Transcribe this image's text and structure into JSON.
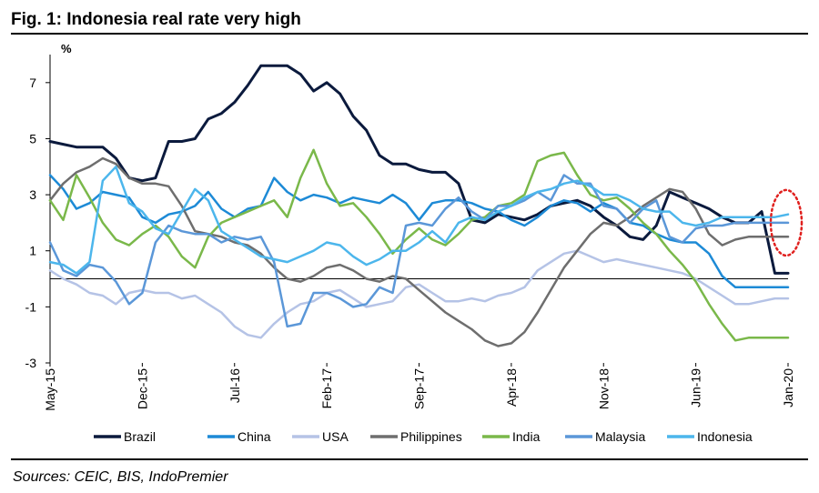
{
  "header": {
    "title": "Fig. 1:  Indonesia real rate very high"
  },
  "footer": {
    "source": "Sources:  CEIC, BIS, IndoPremier"
  },
  "chart_data": {
    "type": "line",
    "ylabel": "%",
    "ylim": [
      -3,
      8
    ],
    "yticks": [
      7,
      5,
      3,
      1,
      -1,
      -3
    ],
    "xlim": [
      0,
      56
    ],
    "xticks": [
      {
        "x": 0,
        "label": "May-15"
      },
      {
        "x": 7,
        "label": "Dec-15"
      },
      {
        "x": 14,
        "label": "Jul-16"
      },
      {
        "x": 21,
        "label": "Feb-17"
      },
      {
        "x": 28,
        "label": "Sep-17"
      },
      {
        "x": 35,
        "label": "Apr-18"
      },
      {
        "x": 42,
        "label": "Nov-18"
      },
      {
        "x": 49,
        "label": "Jun-19"
      },
      {
        "x": 56,
        "label": "Jan-20"
      }
    ],
    "zero_line": true,
    "grid": false,
    "legend_position": "bottom",
    "annotation": "red dotted ellipse around latest values",
    "series": [
      {
        "name": "Brazil",
        "color": "#0b1a3d",
        "width": 3,
        "values": [
          4.9,
          4.8,
          4.7,
          4.7,
          4.7,
          4.3,
          3.6,
          3.5,
          3.6,
          4.9,
          4.9,
          5.0,
          5.7,
          5.9,
          6.3,
          6.9,
          7.6,
          7.6,
          7.6,
          7.3,
          6.7,
          7.0,
          6.6,
          5.8,
          5.3,
          4.4,
          4.1,
          4.1,
          3.9,
          3.8,
          3.8,
          3.4,
          2.1,
          2.0,
          2.3,
          2.2,
          2.1,
          2.3,
          2.6,
          2.7,
          2.8,
          2.6,
          2.2,
          1.9,
          1.5,
          1.4,
          1.9,
          3.1,
          2.9,
          2.7,
          2.5,
          2.2,
          2.0,
          2.0,
          2.4,
          0.2,
          0.2
        ]
      },
      {
        "name": "China",
        "color": "#1d8ad6",
        "width": 2.5,
        "values": [
          3.7,
          3.2,
          2.5,
          2.7,
          3.1,
          3.0,
          2.9,
          2.2,
          2.0,
          2.3,
          2.4,
          2.6,
          3.1,
          2.5,
          2.2,
          2.5,
          2.6,
          3.6,
          3.1,
          2.8,
          3.0,
          2.9,
          2.7,
          2.9,
          2.8,
          2.7,
          3.0,
          2.7,
          2.1,
          2.7,
          2.8,
          2.8,
          2.7,
          2.5,
          2.4,
          2.1,
          1.9,
          2.2,
          2.6,
          2.8,
          2.7,
          2.4,
          2.7,
          2.5,
          2.0,
          1.9,
          1.6,
          1.4,
          1.3,
          1.3,
          0.9,
          0.1,
          -0.3,
          -0.3,
          -0.3,
          -0.3,
          -0.3
        ]
      },
      {
        "name": "USA",
        "color": "#b5c3e6",
        "width": 2.5,
        "values": [
          0.3,
          0.0,
          -0.2,
          -0.5,
          -0.6,
          -0.9,
          -0.5,
          -0.4,
          -0.5,
          -0.5,
          -0.7,
          -0.6,
          -0.9,
          -1.2,
          -1.7,
          -2.0,
          -2.1,
          -1.6,
          -1.2,
          -0.9,
          -0.8,
          -0.5,
          -0.4,
          -0.7,
          -1.0,
          -0.9,
          -0.8,
          -0.3,
          -0.2,
          -0.5,
          -0.8,
          -0.8,
          -0.7,
          -0.8,
          -0.6,
          -0.5,
          -0.3,
          0.3,
          0.6,
          0.9,
          1.0,
          0.8,
          0.6,
          0.7,
          0.6,
          0.5,
          0.4,
          0.3,
          0.2,
          0.0,
          -0.3,
          -0.6,
          -0.9,
          -0.9,
          -0.8,
          -0.7,
          -0.7
        ]
      },
      {
        "name": "Philippines",
        "color": "#6e6e6e",
        "width": 2.5,
        "values": [
          2.8,
          3.4,
          3.8,
          4.0,
          4.3,
          4.1,
          3.6,
          3.4,
          3.4,
          3.3,
          2.6,
          1.7,
          1.6,
          1.5,
          1.3,
          1.2,
          0.9,
          0.4,
          0.0,
          -0.1,
          0.1,
          0.4,
          0.5,
          0.3,
          0.0,
          -0.1,
          0.1,
          0.0,
          -0.4,
          -0.8,
          -1.2,
          -1.5,
          -1.8,
          -2.2,
          -2.4,
          -2.3,
          -1.9,
          -1.2,
          -0.4,
          0.4,
          1.0,
          1.6,
          2.0,
          1.9,
          2.2,
          2.6,
          2.9,
          3.2,
          3.1,
          2.5,
          1.6,
          1.2,
          1.4,
          1.5,
          1.5,
          1.5,
          1.5
        ]
      },
      {
        "name": "India",
        "color": "#7ab84a",
        "width": 2.5,
        "values": [
          2.8,
          2.1,
          3.7,
          2.9,
          2.0,
          1.4,
          1.2,
          1.6,
          1.9,
          1.5,
          0.8,
          0.4,
          1.5,
          2.0,
          2.2,
          2.4,
          2.6,
          2.8,
          2.2,
          3.6,
          4.6,
          3.4,
          2.6,
          2.7,
          2.2,
          1.6,
          0.9,
          1.4,
          1.8,
          1.4,
          1.2,
          1.6,
          2.1,
          2.2,
          2.6,
          2.7,
          3.0,
          4.2,
          4.4,
          4.5,
          3.7,
          3.0,
          2.8,
          2.9,
          2.5,
          2.0,
          1.6,
          1.0,
          0.5,
          -0.1,
          -0.9,
          -1.6,
          -2.2,
          -2.1,
          -2.1,
          -2.1,
          -2.1
        ]
      },
      {
        "name": "Malaysia",
        "color": "#5b97d8",
        "width": 2.5,
        "values": [
          1.3,
          0.3,
          0.1,
          0.5,
          0.4,
          -0.1,
          -0.9,
          -0.5,
          1.3,
          1.9,
          1.7,
          1.6,
          1.6,
          1.3,
          1.5,
          1.4,
          1.5,
          0.6,
          -1.7,
          -1.6,
          -0.5,
          -0.5,
          -0.7,
          -1.0,
          -0.9,
          -0.3,
          -0.5,
          1.9,
          2.0,
          1.9,
          2.5,
          2.9,
          2.4,
          2.1,
          2.6,
          2.6,
          2.8,
          3.1,
          2.8,
          3.7,
          3.4,
          3.4,
          2.6,
          2.5,
          2.0,
          2.5,
          2.8,
          1.5,
          1.3,
          1.8,
          1.9,
          1.9,
          2.0,
          2.0,
          2.0,
          2.0,
          2.0
        ]
      },
      {
        "name": "Indonesia",
        "color": "#4cb6ec",
        "width": 2.5,
        "values": [
          0.6,
          0.5,
          0.2,
          0.6,
          3.5,
          4.0,
          2.7,
          2.4,
          1.8,
          1.6,
          2.4,
          3.2,
          2.8,
          1.7,
          1.4,
          1.1,
          0.8,
          0.7,
          0.6,
          0.8,
          1.0,
          1.3,
          1.2,
          0.8,
          0.5,
          0.7,
          1.0,
          1.0,
          1.3,
          1.7,
          1.3,
          2.0,
          2.2,
          2.1,
          2.4,
          2.6,
          2.9,
          3.1,
          3.2,
          3.4,
          3.5,
          3.3,
          3.0,
          3.0,
          2.8,
          2.5,
          2.4,
          2.4,
          2.0,
          1.9,
          2.0,
          2.2,
          2.2,
          2.2,
          2.2,
          2.2,
          2.3
        ]
      }
    ]
  }
}
